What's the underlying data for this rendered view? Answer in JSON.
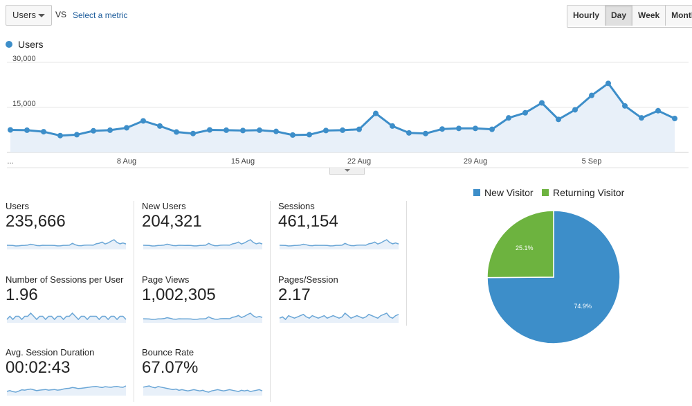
{
  "controls": {
    "metric_selected": "Users",
    "vs_label": "VS",
    "select_metric_link": "Select a metric",
    "ranges": [
      "Hourly",
      "Day",
      "Week",
      "Month"
    ],
    "active_range": "Day"
  },
  "chart_data": [
    {
      "type": "line",
      "series": [
        {
          "name": "Users",
          "color": "#3d8ec9",
          "values": [
            7500,
            7400,
            6900,
            5600,
            5900,
            7200,
            7400,
            8200,
            10500,
            8800,
            6800,
            6300,
            7500,
            7400,
            7300,
            7400,
            7000,
            5800,
            5900,
            7300,
            7400,
            7700,
            13000,
            8800,
            6500,
            6300,
            7800,
            8000,
            8000,
            7700,
            11500,
            13200,
            16500,
            11000,
            14200,
            19000,
            23000,
            15500,
            11500,
            13900,
            11300
          ]
        }
      ],
      "x_tick_labels": [
        "...",
        "8 Aug",
        "15 Aug",
        "22 Aug",
        "29 Aug",
        "5 Sep"
      ],
      "y_tick_labels": [
        "30,000",
        "15,000"
      ],
      "ylim": [
        0,
        30000
      ],
      "grid": true
    },
    {
      "type": "pie",
      "categories": [
        "New Visitor",
        "Returning Visitor"
      ],
      "values": [
        74.9,
        25.1
      ],
      "labels": [
        "74.9%",
        "25.1%"
      ],
      "colors": [
        "#3d8ec9",
        "#6db33f"
      ],
      "legend": "top"
    }
  ],
  "metrics": [
    {
      "label": "Users",
      "value": "235,666",
      "spark": [
        7500,
        7400,
        6900,
        5600,
        5900,
        7200,
        7400,
        8200,
        10500,
        8800,
        6800,
        6300,
        7500,
        7400,
        7300,
        7400,
        7000,
        5800,
        5900,
        7300,
        7400,
        7700,
        13000,
        8800,
        6500,
        6300,
        7800,
        8000,
        8000,
        7700,
        11500,
        13200,
        16500,
        11000,
        14200,
        19000,
        23000,
        15500,
        11500,
        13900,
        11300
      ]
    },
    {
      "label": "New Users",
      "value": "204,321",
      "spark": [
        6500,
        6400,
        6000,
        4900,
        5100,
        6300,
        6400,
        7100,
        9200,
        7600,
        5900,
        5500,
        6500,
        6400,
        6300,
        6400,
        6100,
        5000,
        5100,
        6300,
        6400,
        6700,
        11300,
        7600,
        5600,
        5500,
        6800,
        6900,
        6900,
        6700,
        10000,
        11500,
        14400,
        9600,
        12300,
        16500,
        20000,
        13500,
        10000,
        12100,
        9800
      ]
    },
    {
      "label": "Sessions",
      "value": "461,154",
      "spark": [
        15000,
        14800,
        13800,
        11200,
        11800,
        14400,
        14800,
        16400,
        21000,
        17600,
        13600,
        12600,
        15000,
        14800,
        14600,
        14800,
        14000,
        11600,
        11800,
        14600,
        14800,
        15400,
        26000,
        17600,
        13000,
        12600,
        15600,
        16000,
        16000,
        15400,
        23000,
        26400,
        33000,
        22000,
        28400,
        38000,
        46000,
        31000,
        23000,
        27800,
        22600
      ]
    },
    {
      "label": "Number of Sessions per User",
      "value": "1.96",
      "spark": [
        1.95,
        1.96,
        1.95,
        1.96,
        1.96,
        1.95,
        1.96,
        1.96,
        1.97,
        1.96,
        1.95,
        1.96,
        1.96,
        1.95,
        1.96,
        1.96,
        1.95,
        1.96,
        1.96,
        1.95,
        1.96,
        1.96,
        1.97,
        1.96,
        1.95,
        1.96,
        1.96,
        1.95,
        1.96,
        1.96,
        1.96,
        1.95,
        1.96,
        1.96,
        1.95,
        1.96,
        1.96,
        1.95,
        1.96,
        1.96,
        1.95
      ]
    },
    {
      "label": "Page Views",
      "value": "1,002,305",
      "spark": [
        32000,
        31500,
        30000,
        25000,
        26000,
        31000,
        31500,
        35000,
        45000,
        37500,
        29000,
        27000,
        32000,
        31500,
        31000,
        31500,
        30000,
        25000,
        25500,
        31000,
        31500,
        33000,
        55000,
        37500,
        28000,
        27000,
        33000,
        34000,
        34000,
        33000,
        49000,
        56000,
        70000,
        47000,
        60000,
        80000,
        97000,
        66000,
        49000,
        59000,
        48000
      ]
    },
    {
      "label": "Pages/Session",
      "value": "2.17",
      "spark": [
        2.16,
        2.17,
        2.15,
        2.18,
        2.17,
        2.16,
        2.17,
        2.18,
        2.19,
        2.17,
        2.16,
        2.18,
        2.17,
        2.16,
        2.17,
        2.18,
        2.16,
        2.17,
        2.18,
        2.17,
        2.16,
        2.17,
        2.2,
        2.18,
        2.16,
        2.17,
        2.18,
        2.17,
        2.16,
        2.17,
        2.19,
        2.18,
        2.17,
        2.16,
        2.18,
        2.19,
        2.2,
        2.17,
        2.16,
        2.18,
        2.19
      ]
    },
    {
      "label": "Avg. Session Duration",
      "value": "00:02:43",
      "spark": [
        150,
        155,
        148,
        145,
        152,
        160,
        158,
        162,
        165,
        160,
        155,
        158,
        160,
        162,
        158,
        160,
        162,
        158,
        160,
        165,
        168,
        170,
        175,
        172,
        168,
        170,
        172,
        175,
        178,
        180,
        182,
        178,
        175,
        180,
        178,
        176,
        180,
        182,
        178,
        176,
        185
      ]
    },
    {
      "label": "Bounce Rate",
      "value": "67.07%",
      "spark": [
        67.5,
        67.6,
        67.7,
        67.5,
        67.4,
        67.6,
        67.5,
        67.4,
        67.3,
        67.2,
        67.1,
        67.2,
        67.0,
        67.1,
        67.0,
        66.9,
        67.0,
        67.1,
        67.0,
        66.9,
        67.0,
        66.8,
        66.7,
        66.9,
        67.0,
        67.1,
        67.0,
        66.9,
        67.0,
        67.1,
        67.0,
        66.9,
        66.8,
        67.0,
        66.9,
        67.0,
        66.8,
        66.9,
        67.0,
        67.1,
        66.9
      ]
    }
  ]
}
